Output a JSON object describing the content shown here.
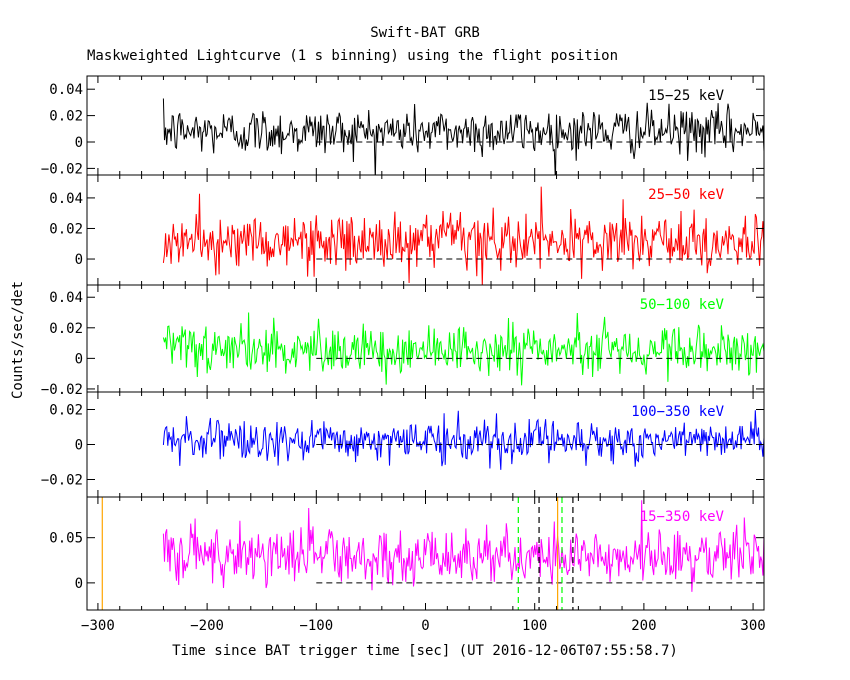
{
  "chart_data": {
    "type": "line",
    "title": "Swift-BAT GRB",
    "subtitle": "Maskweighted Lightcurve (1 s binning) using the flight position",
    "xlabel": "Time since BAT trigger time [sec] (UT 2016-12-06T07:55:58.7)",
    "ylabel": "Counts/sec/det",
    "xlim": [
      -310,
      310
    ],
    "xticks": [
      -300,
      -200,
      -100,
      0,
      100,
      200,
      300
    ],
    "data_range": [
      -240,
      310
    ],
    "panels": [
      {
        "name": "15-25 keV",
        "label": "15−25 keV",
        "color": "#000000",
        "ylim": [
          -0.025,
          0.05
        ],
        "yticks": [
          -0.02,
          0,
          0.02,
          0.04
        ],
        "ytick_labels": [
          "−0.02",
          "0",
          "0.02",
          "0.04"
        ],
        "noise_mean": 0.008,
        "noise_std": 0.009,
        "zero_line_from": -100
      },
      {
        "name": "25-50 keV",
        "label": "25−50 keV",
        "color": "#ff0000",
        "ylim": [
          -0.017,
          0.055
        ],
        "yticks": [
          0,
          0.02,
          0.04
        ],
        "ytick_labels": [
          "0",
          "0.02",
          "0.04"
        ],
        "noise_mean": 0.011,
        "noise_std": 0.009,
        "zero_line_from": -100
      },
      {
        "name": "50-100 keV",
        "label": "50−100 keV",
        "color": "#00ff00",
        "ylim": [
          -0.022,
          0.048
        ],
        "yticks": [
          -0.02,
          0,
          0.02,
          0.04
        ],
        "ytick_labels": [
          "−0.02",
          "0",
          "0.02",
          "0.04"
        ],
        "noise_mean": 0.006,
        "noise_std": 0.008,
        "zero_line_from": -100
      },
      {
        "name": "100-350 keV",
        "label": "100−350 keV",
        "color": "#0000ff",
        "ylim": [
          -0.03,
          0.03
        ],
        "yticks": [
          -0.02,
          0,
          0.02
        ],
        "ytick_labels": [
          "−0.02",
          "0",
          "0.02"
        ],
        "noise_mean": 0.002,
        "noise_std": 0.006,
        "zero_line_from": -100
      },
      {
        "name": "15-350 keV",
        "label": "15−350 keV",
        "color": "#ff00ff",
        "ylim": [
          -0.03,
          0.095
        ],
        "yticks": [
          0,
          0.05
        ],
        "ytick_labels": [
          "0",
          "0.05"
        ],
        "noise_mean": 0.03,
        "noise_std": 0.016,
        "zero_line_from": -100,
        "vlines": [
          {
            "x": -296,
            "color": "#ffa500",
            "style": "solid"
          },
          {
            "x": 121,
            "color": "#ffa500",
            "style": "solid"
          },
          {
            "x": 85,
            "color": "#00ff00",
            "style": "dashed"
          },
          {
            "x": 125,
            "color": "#00ff00",
            "style": "dashed"
          },
          {
            "x": 104,
            "color": "#000000",
            "style": "dashed"
          },
          {
            "x": 135,
            "color": "#000000",
            "style": "dashed"
          }
        ]
      }
    ]
  }
}
